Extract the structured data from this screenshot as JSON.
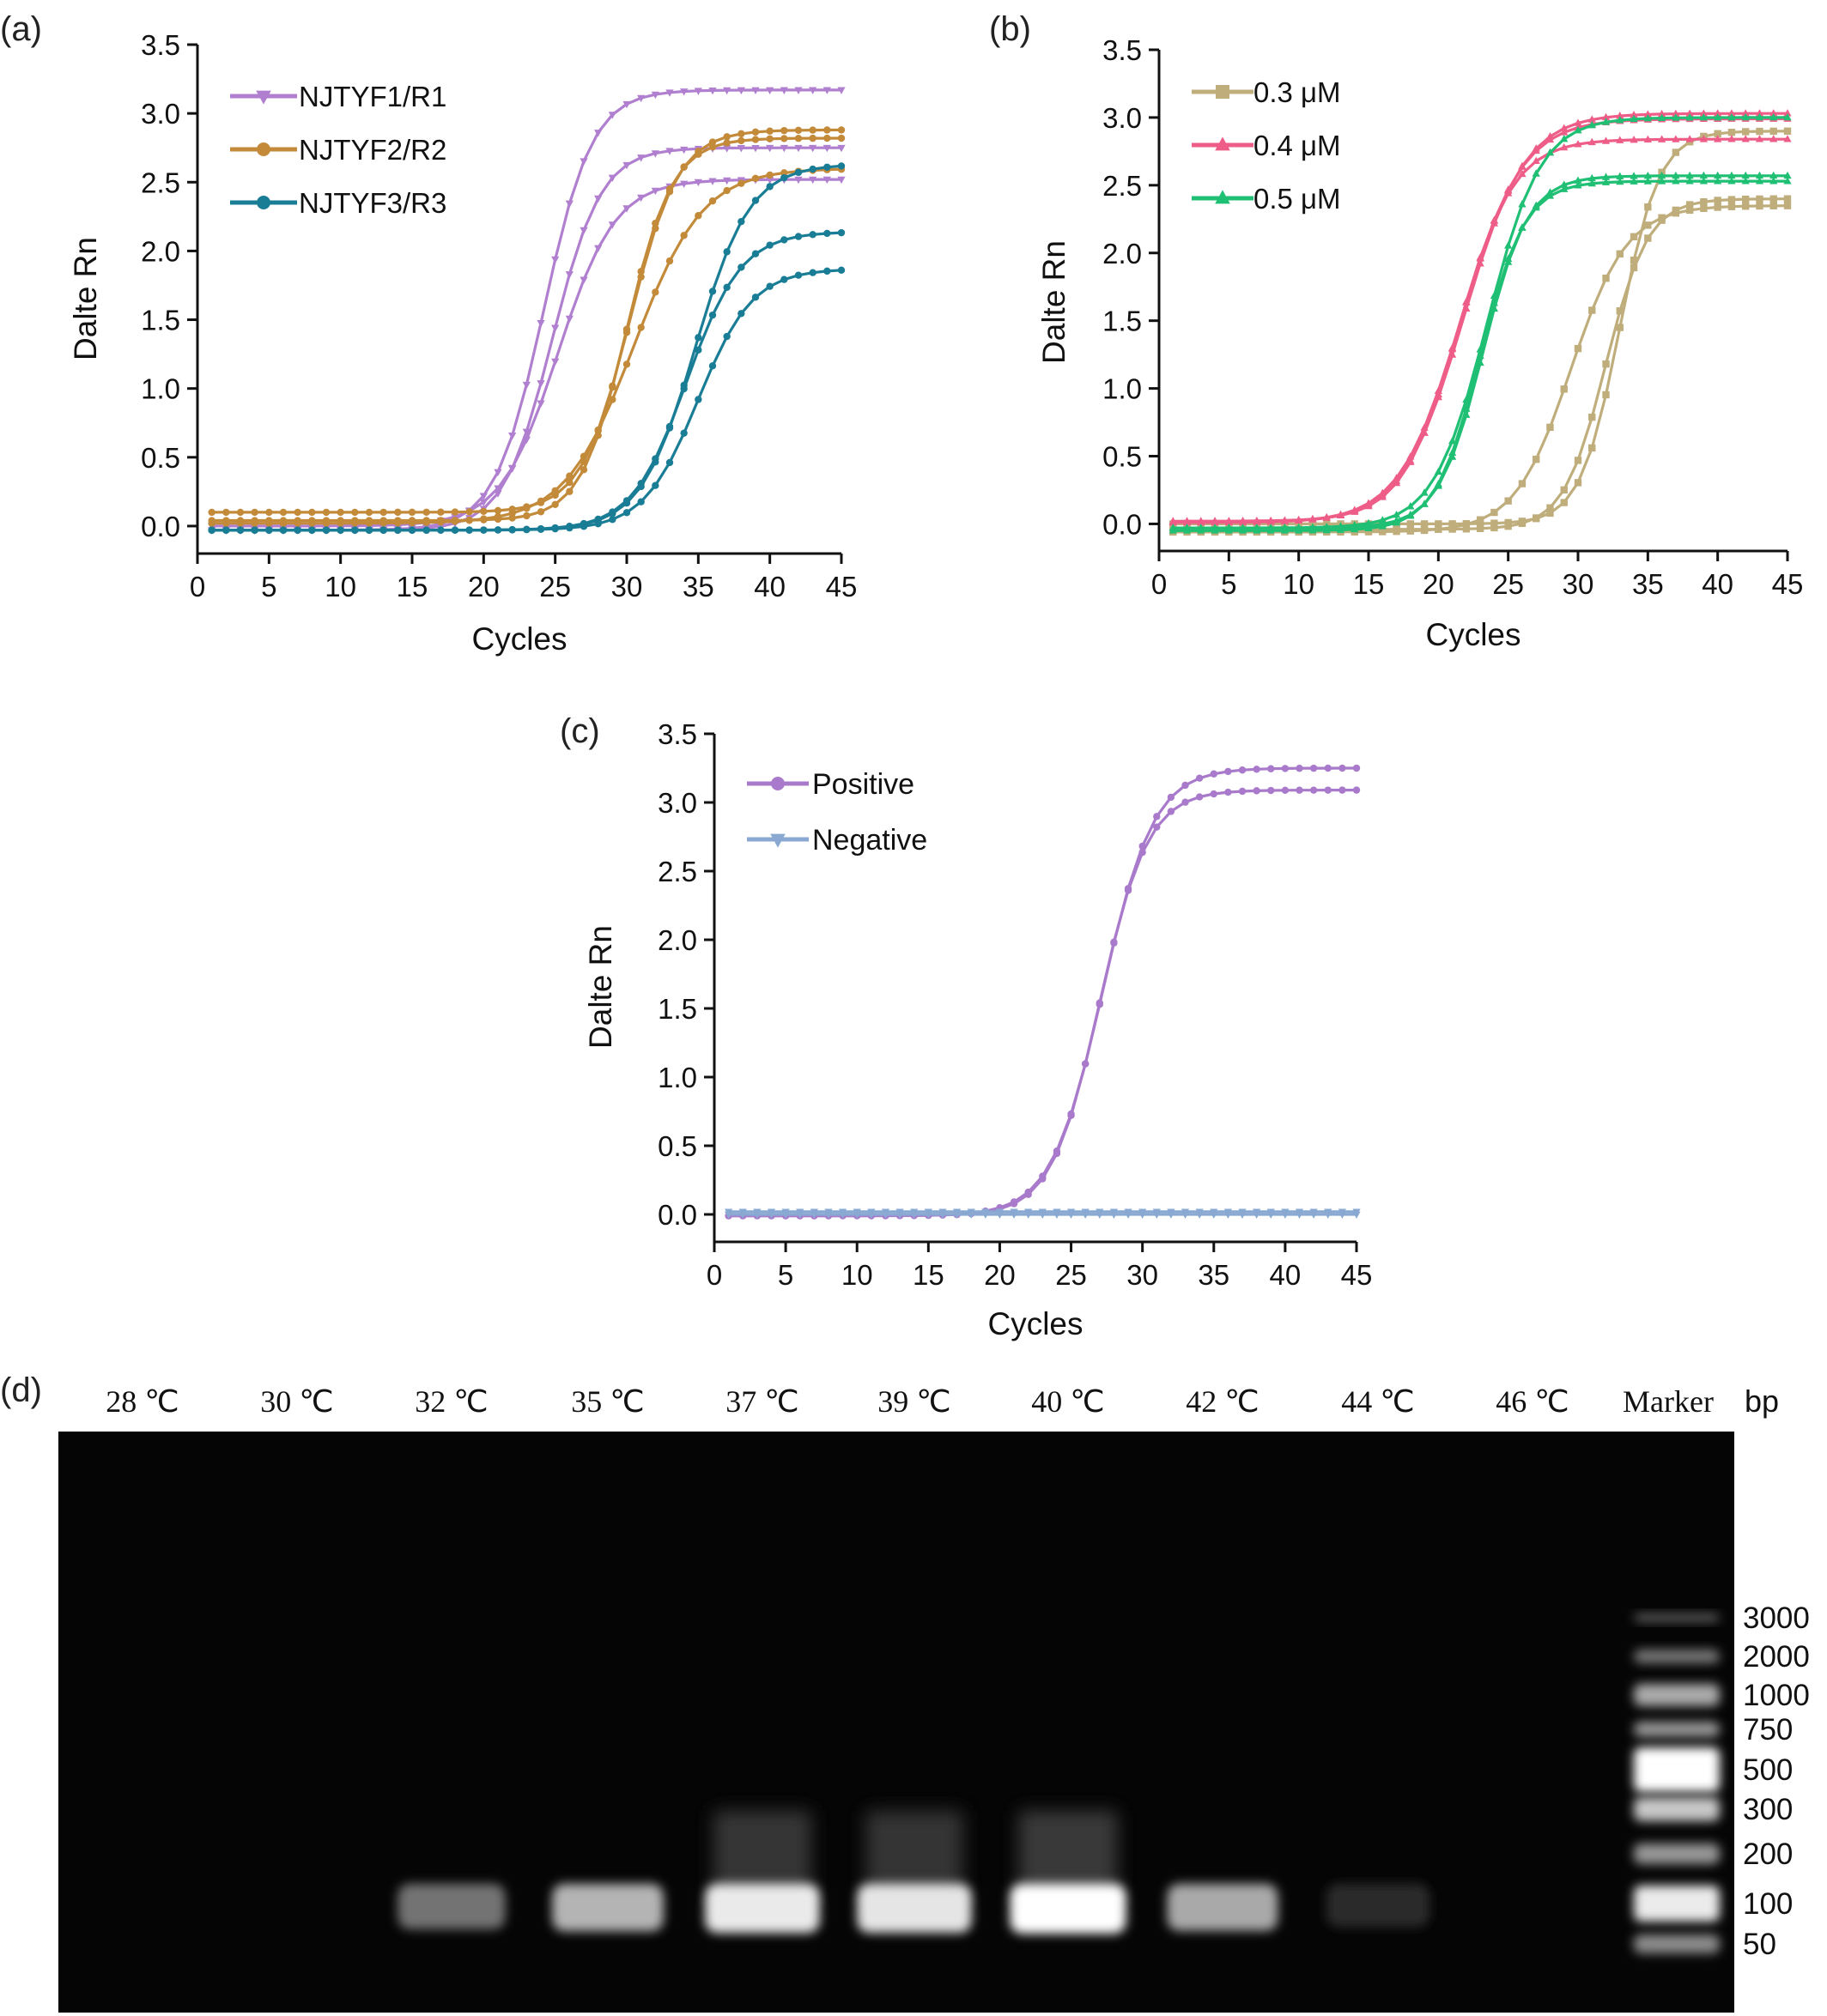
{
  "panels": [
    {
      "id": "a",
      "label": "(a)",
      "xlabel": "Cycles",
      "ylabel": "Dalte Rn",
      "xlim": [
        0,
        45
      ],
      "ylim": [
        -0.2,
        3.5
      ],
      "xticks": [
        "0",
        "5",
        "10",
        "15",
        "20",
        "25",
        "30",
        "35",
        "40",
        "45"
      ],
      "yticks": [
        "0.0",
        "0.5",
        "1.0",
        "1.5",
        "2.0",
        "2.5",
        "3.0",
        "3.5"
      ],
      "legend": [
        {
          "name": "NJTYF1/R1",
          "color": "#b07fcf",
          "marker": "tri-down"
        },
        {
          "name": "NJTYF2/R2",
          "color": "#c38a3a",
          "marker": "circle"
        },
        {
          "name": "NJTYF3/R3",
          "color": "#1a7d96",
          "marker": "circle"
        }
      ]
    },
    {
      "id": "b",
      "label": "(b)",
      "xlabel": "Cycles",
      "ylabel": "Dalte Rn",
      "xlim": [
        0,
        45
      ],
      "ylim": [
        -0.2,
        3.5
      ],
      "xticks": [
        "0",
        "5",
        "10",
        "15",
        "20",
        "25",
        "30",
        "35",
        "40",
        "45"
      ],
      "yticks": [
        "0.0",
        "0.5",
        "1.0",
        "1.5",
        "2.0",
        "2.5",
        "3.0",
        "3.5"
      ],
      "legend": [
        {
          "name": "0.3 μM",
          "color": "#bfae7c",
          "marker": "square"
        },
        {
          "name": "0.4 μM",
          "color": "#ee5d87",
          "marker": "tri-up"
        },
        {
          "name": "0.5 μM",
          "color": "#1fbf74",
          "marker": "tri-up"
        }
      ]
    },
    {
      "id": "c",
      "label": "(c)",
      "xlabel": "Cycles",
      "ylabel": "Dalte Rn",
      "xlim": [
        0,
        45
      ],
      "ylim": [
        -0.2,
        3.5
      ],
      "xticks": [
        "0",
        "5",
        "10",
        "15",
        "20",
        "25",
        "30",
        "35",
        "40",
        "45"
      ],
      "yticks": [
        "0.0",
        "0.5",
        "1.0",
        "1.5",
        "2.0",
        "2.5",
        "3.0",
        "3.5"
      ],
      "legend": [
        {
          "name": "Positive",
          "color": "#a97acb",
          "marker": "circle"
        },
        {
          "name": "Negative",
          "color": "#89a9d2",
          "marker": "tri-down"
        }
      ]
    }
  ],
  "chart_data": [
    {
      "type": "line",
      "panel": "(a)",
      "xlabel": "Cycles",
      "ylabel": "Dalte Rn",
      "xlim": [
        0,
        45
      ],
      "ylim": [
        -0.2,
        3.5
      ],
      "x_range": [
        1,
        45
      ],
      "series": [
        {
          "name": "NJTYF1/R1",
          "curves": [
            {
              "base": -0.03,
              "top": 3.17,
              "ct": 24.2,
              "slope": 1.7
            },
            {
              "base": -0.03,
              "top": 2.75,
              "ct": 24.8,
              "slope": 1.7
            },
            {
              "base": 0.0,
              "top": 2.52,
              "ct": 25.2,
              "slope": 2.0
            }
          ]
        },
        {
          "name": "NJTYF2/R2",
          "curves": [
            {
              "base": 0.1,
              "top": 2.88,
              "ct": 30.2,
              "slope": 1.7
            },
            {
              "base": 0.04,
              "top": 2.82,
              "ct": 30.0,
              "slope": 1.6
            },
            {
              "base": 0.02,
              "top": 2.6,
              "ct": 30.5,
              "slope": 2.4
            }
          ]
        },
        {
          "name": "NJTYF3/R3",
          "curves": [
            {
              "base": -0.03,
              "top": 2.63,
              "ct": 34.8,
              "slope": 1.9
            },
            {
              "base": -0.03,
              "top": 2.14,
              "ct": 34.2,
              "slope": 1.9
            },
            {
              "base": -0.03,
              "top": 1.87,
              "ct": 35.0,
              "slope": 1.9
            }
          ]
        }
      ]
    },
    {
      "type": "line",
      "panel": "(b)",
      "xlabel": "Cycles",
      "ylabel": "Dalte Rn",
      "xlim": [
        0,
        45
      ],
      "ylim": [
        -0.2,
        3.5
      ],
      "x_range": [
        1,
        45
      ],
      "series": [
        {
          "name": "0.3 μM",
          "curves": [
            {
              "base": 0.0,
              "top": 2.9,
              "ct": 33.0,
              "slope": 1.4
            },
            {
              "base": -0.04,
              "top": 2.4,
              "ct": 32.0,
              "slope": 1.5
            },
            {
              "base": -0.06,
              "top": 2.35,
              "ct": 29.5,
              "slope": 2.0
            }
          ]
        },
        {
          "name": "0.4 μM",
          "curves": [
            {
              "base": 0.01,
              "top": 3.03,
              "ct": 21.8,
              "slope": 2.2
            },
            {
              "base": 0.01,
              "top": 2.99,
              "ct": 21.6,
              "slope": 2.2
            },
            {
              "base": 0.02,
              "top": 2.84,
              "ct": 21.4,
              "slope": 2.0
            }
          ]
        },
        {
          "name": "0.5 μM",
          "curves": [
            {
              "base": -0.03,
              "top": 3.0,
              "ct": 23.5,
              "slope": 1.9
            },
            {
              "base": -0.03,
              "top": 2.57,
              "ct": 23.2,
              "slope": 1.6
            },
            {
              "base": -0.05,
              "top": 2.53,
              "ct": 23.0,
              "slope": 1.6
            }
          ]
        }
      ]
    },
    {
      "type": "line",
      "panel": "(c)",
      "xlabel": "Cycles",
      "ylabel": "Dalte Rn",
      "xlim": [
        0,
        45
      ],
      "ylim": [
        -0.2,
        3.5
      ],
      "x_range": [
        1,
        45
      ],
      "series": [
        {
          "name": "Positive",
          "curves": [
            {
              "base": -0.01,
              "top": 3.25,
              "ct": 27.2,
              "slope": 1.8
            },
            {
              "base": -0.01,
              "top": 3.09,
              "ct": 27.0,
              "slope": 1.7
            }
          ]
        },
        {
          "name": "Negative",
          "curves": [
            {
              "base": 0.02,
              "top": 0.02,
              "ct": 50,
              "slope": 1
            },
            {
              "base": 0.0,
              "top": 0.0,
              "ct": 50,
              "slope": 1
            }
          ]
        }
      ]
    }
  ],
  "gel": {
    "label": "(d)",
    "lanes": [
      "28 ℃",
      "30 ℃",
      "32 ℃",
      "35 ℃",
      "37 ℃",
      "39 ℃",
      "40 ℃",
      "42 ℃",
      "44 ℃",
      "46 ℃"
    ],
    "band_intensity": [
      0.0,
      0.0,
      0.35,
      0.65,
      0.9,
      0.88,
      1.0,
      0.6,
      0.02,
      0.0
    ],
    "marker_label": "Marker",
    "unit_label": "bp",
    "marker_sizes": [
      "3000",
      "2000",
      "1000",
      "750",
      "500",
      "300",
      "200",
      "100",
      "50"
    ]
  },
  "colors": {
    "a": [
      "#b07fcf",
      "#c38a3a",
      "#1a7d96"
    ],
    "b": [
      "#bfae7c",
      "#ee5d87",
      "#1fbf74"
    ],
    "c": [
      "#a97acb",
      "#89a9d2"
    ]
  }
}
